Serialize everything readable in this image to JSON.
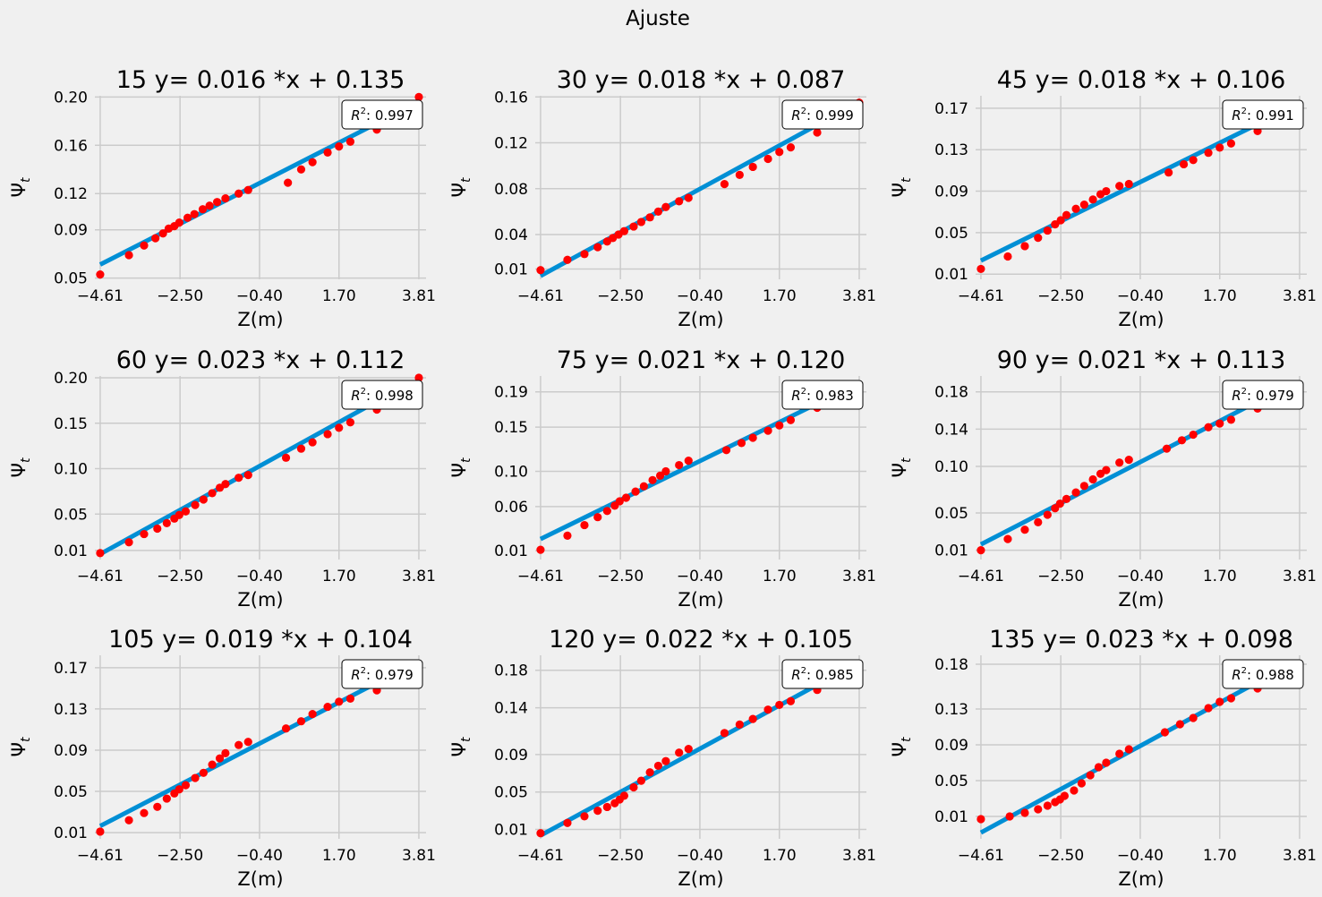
{
  "figure": {
    "suptitle": "Ajuste"
  },
  "colors": {
    "background": "#f0f0f0",
    "grid": "#cbcbcb",
    "line": "#008fd5",
    "points": "#ff0000"
  },
  "chart_data": [
    {
      "type": "scatter",
      "title": "15  y= 0.016 *x + 0.135",
      "xlabel": "Z(m)",
      "ylabel": "Ψ_t",
      "xlim": [
        -4.75,
        4.0
      ],
      "ylim": [
        0.049,
        0.201
      ],
      "xticks": [
        -4.61,
        -2.5,
        -0.4,
        1.7,
        3.81
      ],
      "xtick_labels": [
        "−4.61",
        "−2.50",
        "−0.40",
        "1.70",
        "3.81"
      ],
      "yticks": [
        0.05,
        0.09,
        0.12,
        0.16,
        0.2
      ],
      "ytick_labels": [
        "0.05",
        "0.09",
        "0.12",
        "0.16",
        "0.20"
      ],
      "r2_label": "0.997",
      "fit": {
        "slope": 0.016,
        "intercept": 0.135
      },
      "points": {
        "x": [
          -4.61,
          -3.85,
          -3.45,
          -3.15,
          -2.95,
          -2.8,
          -2.65,
          -2.52,
          -2.3,
          -2.12,
          -1.9,
          -1.72,
          -1.52,
          -1.3,
          -0.95,
          -0.7,
          0.35,
          0.7,
          1.0,
          1.4,
          1.7,
          2.0,
          2.7,
          3.81
        ],
        "y": [
          0.053,
          0.069,
          0.077,
          0.083,
          0.087,
          0.091,
          0.093,
          0.096,
          0.1,
          0.103,
          0.107,
          0.11,
          0.113,
          0.116,
          0.12,
          0.123,
          0.129,
          0.14,
          0.146,
          0.154,
          0.159,
          0.163,
          0.173,
          0.2
        ]
      }
    },
    {
      "type": "scatter",
      "title": "30  y= 0.018 *x + 0.087",
      "xlabel": "Z(m)",
      "ylabel": "Ψ_t",
      "xlim": [
        -4.75,
        4.0
      ],
      "ylim": [
        0.001,
        0.161
      ],
      "xticks": [
        -4.61,
        -2.5,
        -0.4,
        1.7,
        3.81
      ],
      "xtick_labels": [
        "−4.61",
        "−2.50",
        "−0.40",
        "1.70",
        "3.81"
      ],
      "yticks": [
        0.01,
        0.04,
        0.08,
        0.12,
        0.16
      ],
      "ytick_labels": [
        "0.01",
        "0.04",
        "0.08",
        "0.12",
        "0.16"
      ],
      "r2_label": "0.999",
      "fit": {
        "slope": 0.018,
        "intercept": 0.087
      },
      "points": {
        "x": [
          -4.61,
          -3.9,
          -3.45,
          -3.1,
          -2.85,
          -2.7,
          -2.55,
          -2.4,
          -2.15,
          -1.95,
          -1.72,
          -1.5,
          -1.3,
          -0.95,
          -0.7,
          0.25,
          0.65,
          1.0,
          1.4,
          1.7,
          2.0,
          2.7,
          3.81
        ],
        "y": [
          0.009,
          0.018,
          0.023,
          0.029,
          0.034,
          0.037,
          0.04,
          0.043,
          0.047,
          0.051,
          0.055,
          0.06,
          0.064,
          0.069,
          0.072,
          0.084,
          0.092,
          0.099,
          0.106,
          0.112,
          0.116,
          0.129,
          0.155
        ]
      }
    },
    {
      "type": "scatter",
      "title": "45  y= 0.018 *x + 0.106",
      "xlabel": "Z(m)",
      "ylabel": "Ψ_t",
      "xlim": [
        -4.75,
        4.0
      ],
      "ylim": [
        0.005,
        0.182
      ],
      "xticks": [
        -4.61,
        -2.5,
        -0.4,
        1.7,
        3.81
      ],
      "xtick_labels": [
        "−4.61",
        "−2.50",
        "−0.40",
        "1.70",
        "3.81"
      ],
      "yticks": [
        0.01,
        0.05,
        0.09,
        0.13,
        0.17
      ],
      "ytick_labels": [
        "0.01",
        "0.05",
        "0.09",
        "0.13",
        "0.17"
      ],
      "r2_label": "0.991",
      "fit": {
        "slope": 0.018,
        "intercept": 0.106
      },
      "points": {
        "x": [
          -4.61,
          -3.9,
          -3.45,
          -3.1,
          -2.85,
          -2.65,
          -2.5,
          -2.35,
          -2.1,
          -1.88,
          -1.65,
          -1.45,
          -1.3,
          -0.95,
          -0.7,
          0.35,
          0.75,
          1.0,
          1.4,
          1.7,
          2.0,
          2.7
        ],
        "y": [
          0.015,
          0.027,
          0.037,
          0.045,
          0.052,
          0.058,
          0.062,
          0.067,
          0.073,
          0.077,
          0.082,
          0.087,
          0.09,
          0.095,
          0.097,
          0.108,
          0.116,
          0.12,
          0.127,
          0.132,
          0.136,
          0.148
        ]
      }
    },
    {
      "type": "scatter",
      "title": "60  y= 0.023 *x + 0.112",
      "xlabel": "Z(m)",
      "ylabel": "Ψ_t",
      "xlim": [
        -4.75,
        4.0
      ],
      "ylim": [
        0.0,
        0.202
      ],
      "xticks": [
        -4.61,
        -2.5,
        -0.4,
        1.7,
        3.81
      ],
      "xtick_labels": [
        "−4.61",
        "−2.50",
        "−0.40",
        "1.70",
        "3.81"
      ],
      "yticks": [
        0.01,
        0.05,
        0.1,
        0.15,
        0.2
      ],
      "ytick_labels": [
        "0.01",
        "0.05",
        "0.10",
        "0.15",
        "0.20"
      ],
      "r2_label": "0.998",
      "fit": {
        "slope": 0.023,
        "intercept": 0.112
      },
      "points": {
        "x": [
          -4.61,
          -3.85,
          -3.45,
          -3.1,
          -2.85,
          -2.65,
          -2.52,
          -2.35,
          -2.1,
          -1.88,
          -1.65,
          -1.45,
          -1.3,
          -0.95,
          -0.7,
          0.3,
          0.7,
          1.0,
          1.4,
          1.7,
          2.0,
          2.7,
          3.81
        ],
        "y": [
          0.007,
          0.019,
          0.028,
          0.034,
          0.04,
          0.045,
          0.049,
          0.053,
          0.06,
          0.066,
          0.073,
          0.079,
          0.083,
          0.09,
          0.093,
          0.112,
          0.122,
          0.129,
          0.138,
          0.145,
          0.151,
          0.165,
          0.2
        ]
      }
    },
    {
      "type": "scatter",
      "title": "75  y= 0.021 *x + 0.120",
      "xlabel": "Z(m)",
      "ylabel": "Ψ_t",
      "xlim": [
        -4.75,
        4.0
      ],
      "ylim": [
        0.0,
        0.208
      ],
      "xticks": [
        -4.61,
        -2.5,
        -0.4,
        1.7,
        3.81
      ],
      "xtick_labels": [
        "−4.61",
        "−2.50",
        "−0.40",
        "1.70",
        "3.81"
      ],
      "yticks": [
        0.01,
        0.06,
        0.1,
        0.15,
        0.19
      ],
      "ytick_labels": [
        "0.01",
        "0.06",
        "0.10",
        "0.15",
        "0.19"
      ],
      "r2_label": "0.983",
      "fit": {
        "slope": 0.021,
        "intercept": 0.12
      },
      "points": {
        "x": [
          -4.61,
          -3.9,
          -3.45,
          -3.1,
          -2.85,
          -2.65,
          -2.52,
          -2.35,
          -2.1,
          -1.88,
          -1.65,
          -1.45,
          -1.3,
          -0.95,
          -0.7,
          0.3,
          0.7,
          1.0,
          1.4,
          1.7,
          2.0,
          2.7
        ],
        "y": [
          0.011,
          0.027,
          0.039,
          0.048,
          0.055,
          0.061,
          0.066,
          0.07,
          0.077,
          0.083,
          0.09,
          0.095,
          0.1,
          0.107,
          0.112,
          0.124,
          0.132,
          0.138,
          0.146,
          0.152,
          0.158,
          0.172
        ]
      }
    },
    {
      "type": "scatter",
      "title": "90  y= 0.021 *x + 0.113",
      "xlabel": "Z(m)",
      "ylabel": "Ψ_t",
      "xlim": [
        -4.75,
        4.0
      ],
      "ylim": [
        0.0,
        0.197
      ],
      "xticks": [
        -4.61,
        -2.5,
        -0.4,
        1.7,
        3.81
      ],
      "xtick_labels": [
        "−4.61",
        "−2.50",
        "−0.40",
        "1.70",
        "3.81"
      ],
      "yticks": [
        0.01,
        0.05,
        0.1,
        0.14,
        0.18
      ],
      "ytick_labels": [
        "0.01",
        "0.05",
        "0.10",
        "0.14",
        "0.18"
      ],
      "r2_label": "0.979",
      "fit": {
        "slope": 0.021,
        "intercept": 0.113
      },
      "points": {
        "x": [
          -4.61,
          -3.9,
          -3.45,
          -3.1,
          -2.85,
          -2.65,
          -2.52,
          -2.35,
          -2.1,
          -1.88,
          -1.65,
          -1.45,
          -1.3,
          -0.95,
          -0.7,
          0.3,
          0.7,
          1.0,
          1.4,
          1.7,
          2.0,
          2.7
        ],
        "y": [
          0.01,
          0.022,
          0.032,
          0.04,
          0.048,
          0.055,
          0.06,
          0.065,
          0.072,
          0.079,
          0.086,
          0.092,
          0.096,
          0.104,
          0.107,
          0.119,
          0.128,
          0.134,
          0.142,
          0.146,
          0.15,
          0.162
        ]
      }
    },
    {
      "type": "scatter",
      "title": "105  y= 0.019 *x + 0.104",
      "xlabel": "Z(m)",
      "ylabel": "Ψ_t",
      "xlim": [
        -4.75,
        4.0
      ],
      "ylim": [
        0.004,
        0.182
      ],
      "xticks": [
        -4.61,
        -2.5,
        -0.4,
        1.7,
        3.81
      ],
      "xtick_labels": [
        "−4.61",
        "−2.50",
        "−0.40",
        "1.70",
        "3.81"
      ],
      "yticks": [
        0.01,
        0.05,
        0.09,
        0.13,
        0.17
      ],
      "ytick_labels": [
        "0.01",
        "0.05",
        "0.09",
        "0.13",
        "0.17"
      ],
      "r2_label": "0.979",
      "fit": {
        "slope": 0.019,
        "intercept": 0.104
      },
      "points": {
        "x": [
          -4.61,
          -3.85,
          -3.45,
          -3.1,
          -2.85,
          -2.65,
          -2.52,
          -2.35,
          -2.1,
          -1.88,
          -1.65,
          -1.45,
          -1.3,
          -0.95,
          -0.7,
          0.3,
          0.7,
          1.0,
          1.4,
          1.7,
          2.0,
          2.7
        ],
        "y": [
          0.011,
          0.022,
          0.029,
          0.035,
          0.043,
          0.048,
          0.052,
          0.056,
          0.063,
          0.068,
          0.076,
          0.082,
          0.087,
          0.095,
          0.098,
          0.111,
          0.118,
          0.125,
          0.132,
          0.137,
          0.14,
          0.148
        ]
      }
    },
    {
      "type": "scatter",
      "title": "120  y= 0.022 *x + 0.105",
      "xlabel": "Z(m)",
      "ylabel": "Ψ_t",
      "xlim": [
        -4.75,
        4.0
      ],
      "ylim": [
        0.0,
        0.196
      ],
      "xticks": [
        -4.61,
        -2.5,
        -0.4,
        1.7,
        3.81
      ],
      "xtick_labels": [
        "−4.61",
        "−2.50",
        "−0.40",
        "1.70",
        "3.81"
      ],
      "yticks": [
        0.01,
        0.05,
        0.09,
        0.14,
        0.18
      ],
      "ytick_labels": [
        "0.01",
        "0.05",
        "0.09",
        "0.14",
        "0.18"
      ],
      "r2_label": "0.985",
      "fit": {
        "slope": 0.022,
        "intercept": 0.105
      },
      "points": {
        "x": [
          -4.61,
          -3.9,
          -3.45,
          -3.1,
          -2.85,
          -2.65,
          -2.52,
          -2.4,
          -2.15,
          -1.95,
          -1.72,
          -1.5,
          -1.3,
          -0.95,
          -0.7,
          0.25,
          0.65,
          1.0,
          1.4,
          1.7,
          2.0,
          2.7
        ],
        "y": [
          0.006,
          0.017,
          0.024,
          0.03,
          0.034,
          0.038,
          0.042,
          0.046,
          0.055,
          0.062,
          0.071,
          0.078,
          0.083,
          0.092,
          0.096,
          0.113,
          0.122,
          0.128,
          0.138,
          0.143,
          0.147,
          0.159
        ]
      }
    },
    {
      "type": "scatter",
      "title": "135  y= 0.023 *x + 0.098",
      "xlabel": "Z(m)",
      "ylabel": "Ψ_t",
      "xlim": [
        -4.75,
        4.0
      ],
      "ylim": [
        -0.015,
        0.19
      ],
      "xticks": [
        -4.61,
        -2.5,
        -0.4,
        1.7,
        3.81
      ],
      "xtick_labels": [
        "−4.61",
        "−2.50",
        "−0.40",
        "1.70",
        "3.81"
      ],
      "yticks": [
        0.01,
        0.05,
        0.09,
        0.13,
        0.18
      ],
      "ytick_labels": [
        "0.01",
        "0.05",
        "0.09",
        "0.13",
        "0.18"
      ],
      "r2_label": "0.988",
      "fit": {
        "slope": 0.023,
        "intercept": 0.098
      },
      "points": {
        "x": [
          -4.61,
          -3.85,
          -3.45,
          -3.1,
          -2.85,
          -2.65,
          -2.52,
          -2.4,
          -2.15,
          -1.95,
          -1.72,
          -1.5,
          -1.3,
          -0.95,
          -0.7,
          0.25,
          0.65,
          1.0,
          1.4,
          1.7,
          2.0,
          2.7
        ],
        "y": [
          0.007,
          0.01,
          0.014,
          0.018,
          0.022,
          0.026,
          0.029,
          0.033,
          0.039,
          0.047,
          0.056,
          0.065,
          0.07,
          0.08,
          0.085,
          0.104,
          0.113,
          0.12,
          0.131,
          0.138,
          0.142,
          0.153
        ]
      }
    }
  ]
}
